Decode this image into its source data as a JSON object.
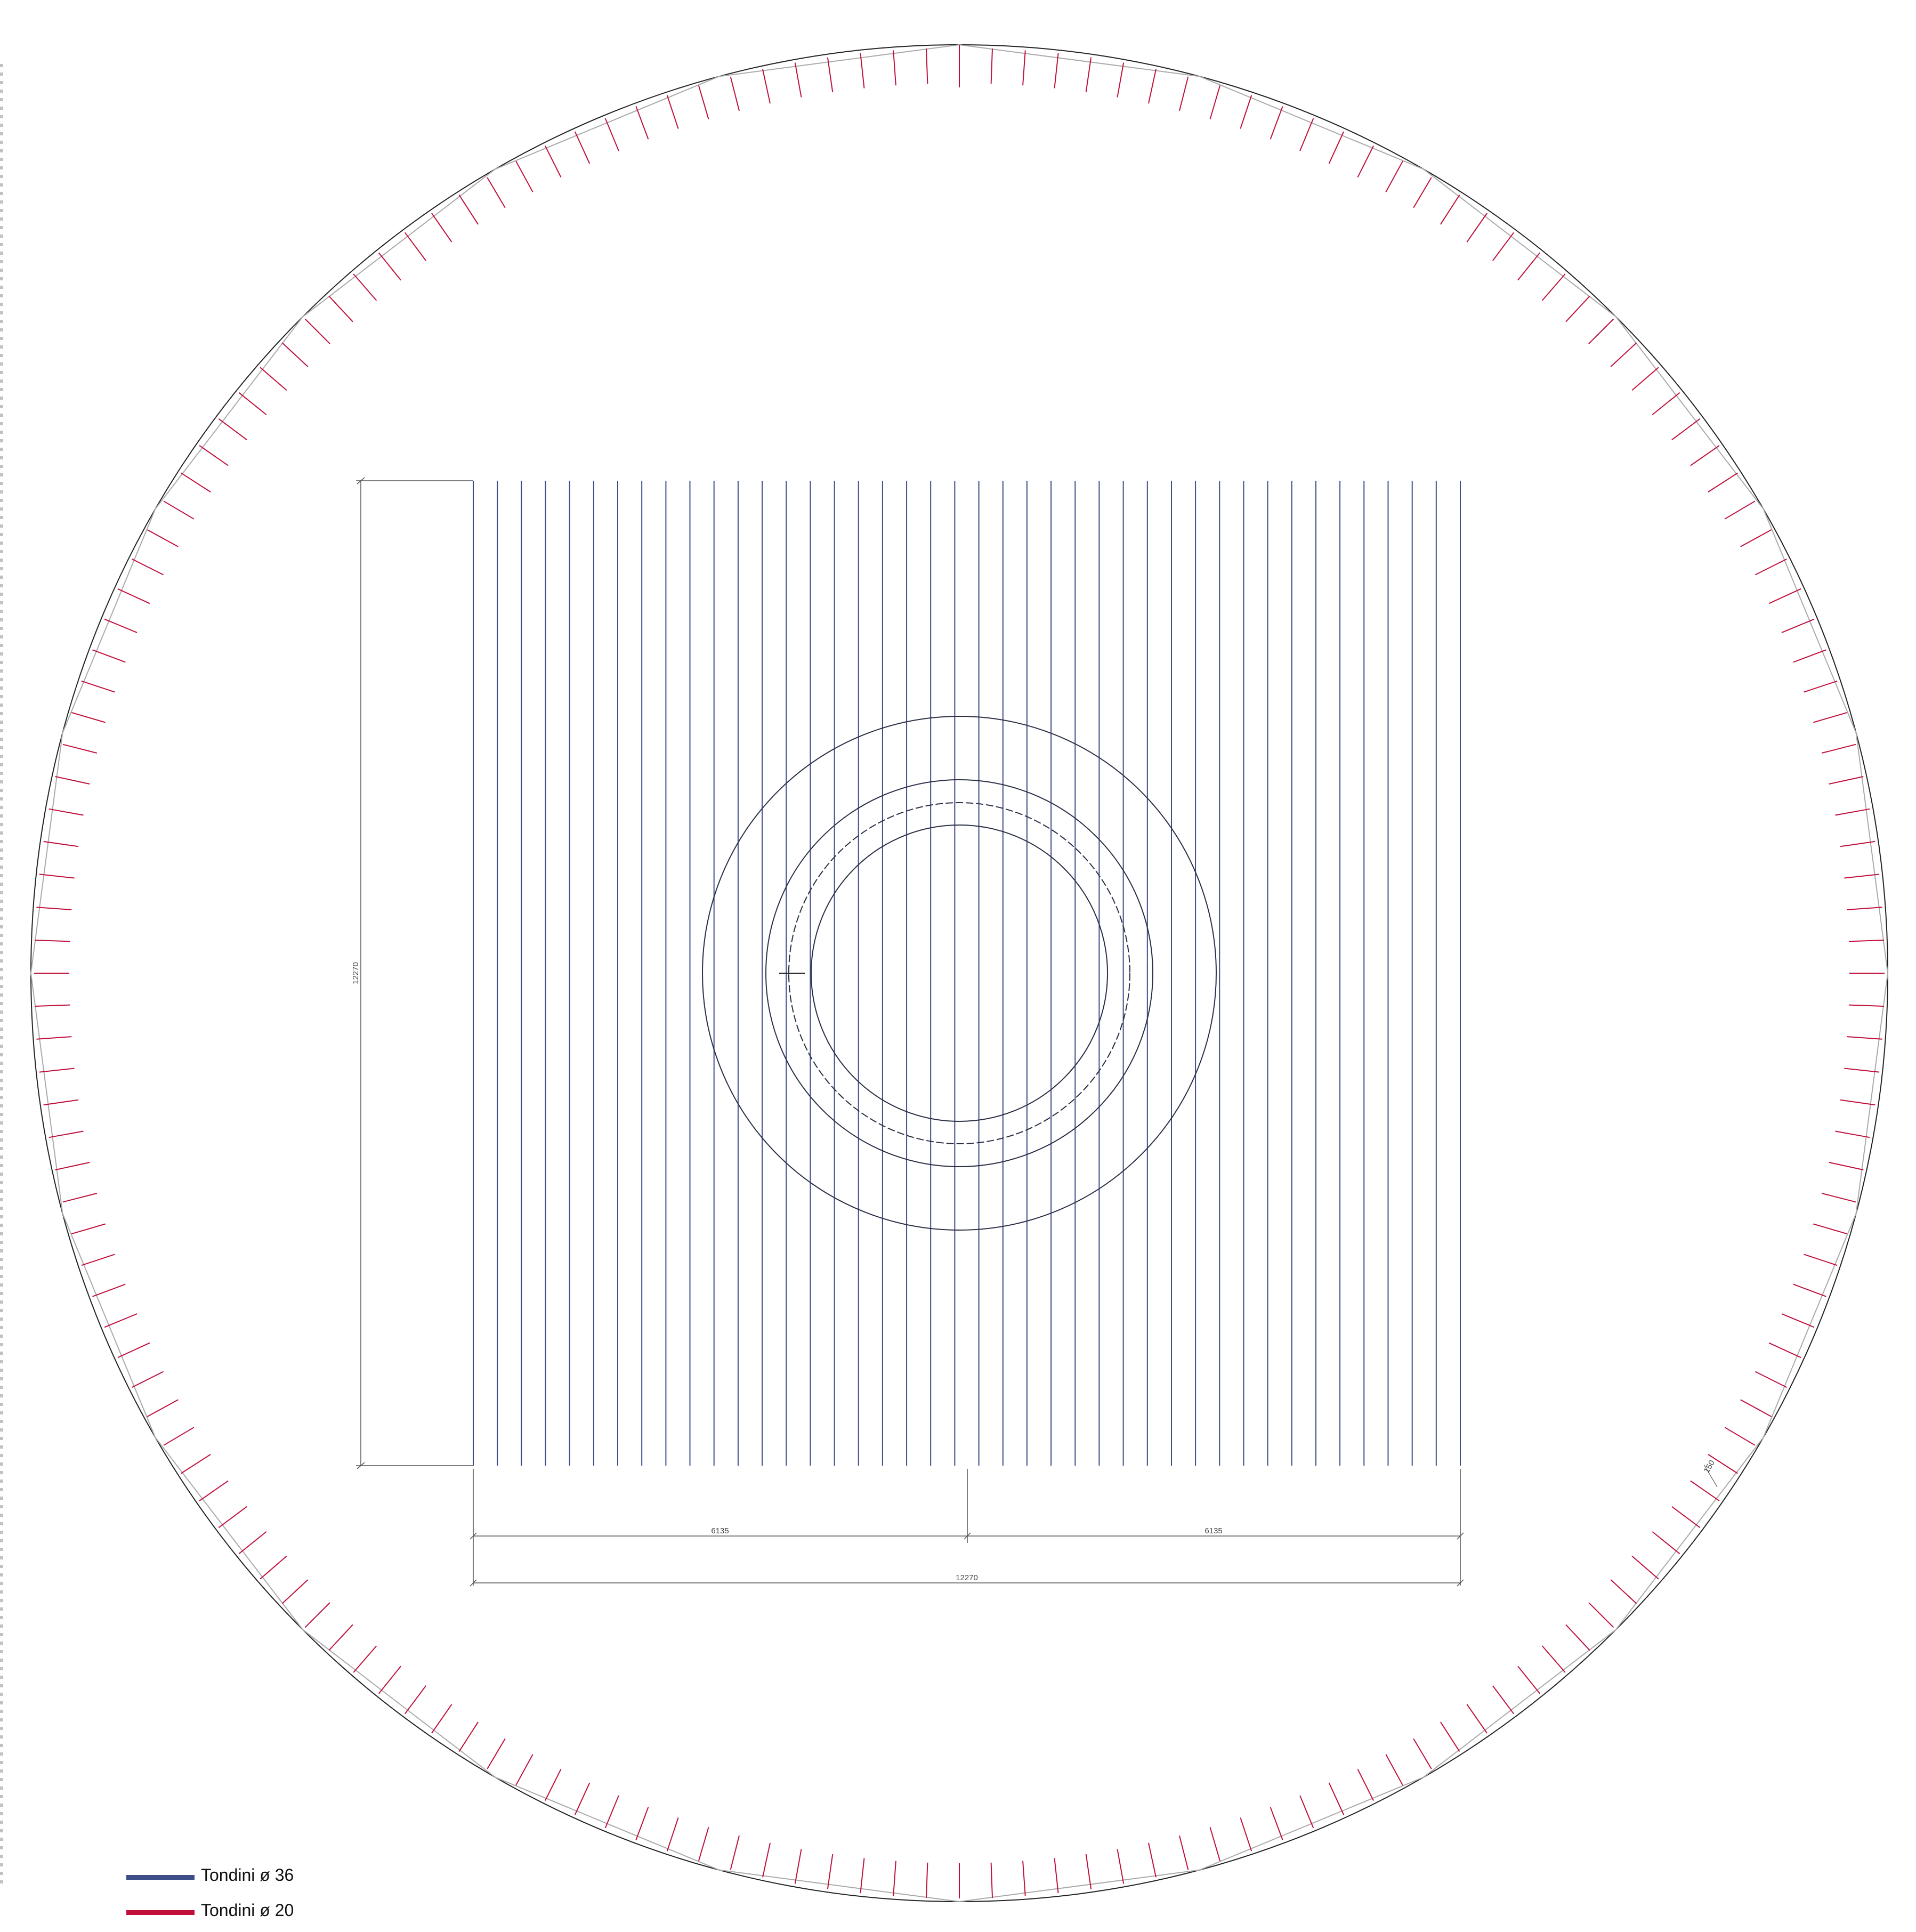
{
  "drawing": {
    "dimensions": {
      "height_label": "12270",
      "half_width_left_label": "6135",
      "half_width_right_label": "6135",
      "total_width_label": "12270",
      "spacing_label": "150"
    },
    "radial_bar_count": 176,
    "parallel_bar_count": 42,
    "center_ring_count": 4,
    "colors": {
      "outline": "#222222",
      "polygon": "#aaaaaa",
      "bar_36": "#3d4d88",
      "bar_20": "#c0103a",
      "dimension": "#555555"
    }
  },
  "legend": [
    {
      "label": "Tondini ø 36",
      "color": "#3d4d88"
    },
    {
      "label": "Tondini ø 20",
      "color": "#c0103a"
    }
  ]
}
